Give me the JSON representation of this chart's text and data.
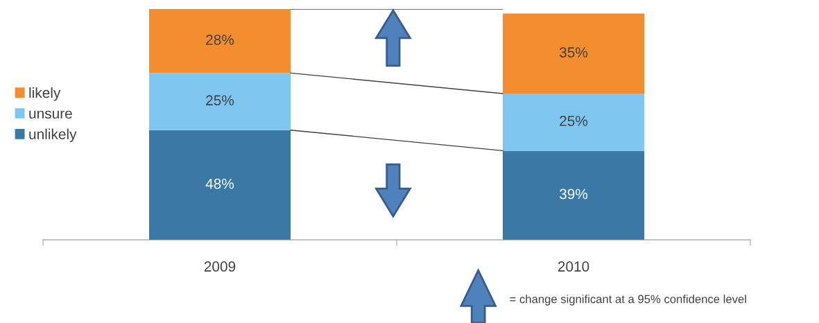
{
  "chart_data": {
    "type": "bar",
    "stacked": true,
    "categories": [
      "2009",
      "2010"
    ],
    "series": [
      {
        "name": "unlikely",
        "color": "#3a79a6",
        "values": [
          48,
          39
        ],
        "value_labels": [
          "48%",
          "39%"
        ]
      },
      {
        "name": "unsure",
        "color": "#7ec6f0",
        "values": [
          25,
          25
        ],
        "value_labels": [
          "25%",
          "25%"
        ]
      },
      {
        "name": "likely",
        "color": "#f28e2f",
        "values": [
          28,
          35
        ],
        "value_labels": [
          "28%",
          "35%"
        ]
      }
    ],
    "legend": "left",
    "grid": false,
    "annotations": [
      "= change significant at a 95% confidence level"
    ]
  }
}
